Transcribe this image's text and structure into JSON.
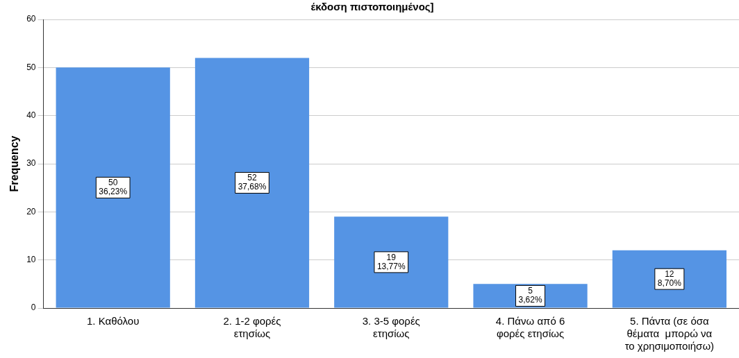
{
  "chart_data": {
    "type": "bar",
    "title": "έκδοση πιστοποιημένος]",
    "ylabel": "Frequency",
    "categories": [
      "1. Καθόλου",
      "2. 1-2 φορές ετησίως",
      "3. 3-5 φορές ετησίως",
      "4. Πάνω από 6 φορές ετησίως",
      "5. Πάντα (σε όσα θέματα  μπορώ να το χρησιμοποιήσω)"
    ],
    "values": [
      50,
      52,
      19,
      5,
      12
    ],
    "color": "#5594e4",
    "value_labels": [
      "50\n36,23%",
      "52\n37,68%",
      "19\n13,77%",
      "5\n3,62%",
      "12\n8,70%"
    ],
    "ylim": [
      0,
      60
    ],
    "yticks": [
      0,
      10,
      20,
      30,
      40,
      50,
      60
    ],
    "grid": "y"
  }
}
